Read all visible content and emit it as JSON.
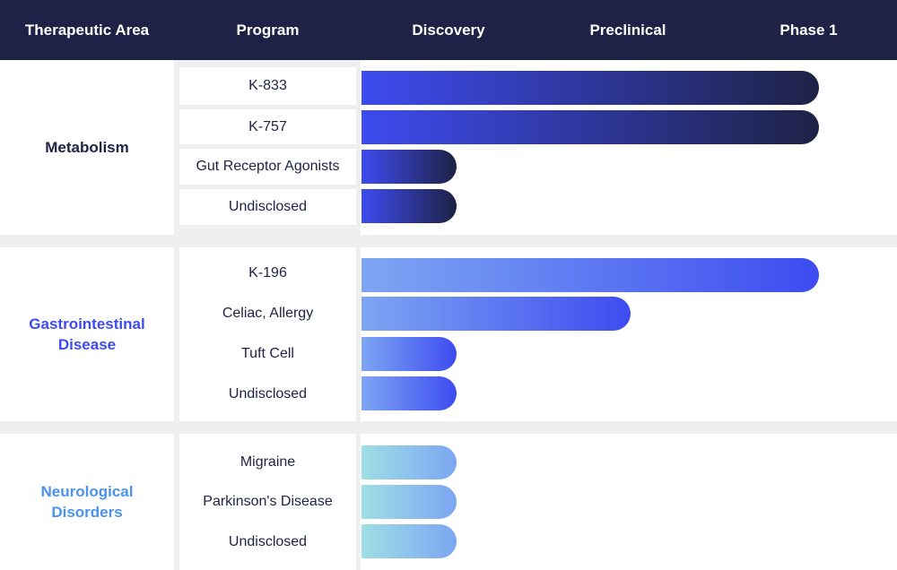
{
  "header": {
    "therapeutic_area": "Therapeutic Area",
    "program": "Program",
    "stages": [
      "Discovery",
      "Preclinical",
      "Phase 1"
    ]
  },
  "colors": {
    "header_bg": "#1e2246",
    "divider": "#efefef",
    "metabolism": "#1e2246",
    "gastrointestinal": "#3d4bf0",
    "neurological": "#4a92ef"
  },
  "chart_data": {
    "type": "bar",
    "orientation": "horizontal",
    "x_categories": [
      "Discovery",
      "Preclinical",
      "Phase 1"
    ],
    "value_meaning": "stage reached, in stage columns (1 = Discovery, 2 = Preclinical, 3 = Phase 1)",
    "xlim": [
      0,
      3
    ],
    "groups": [
      {
        "area": "Metabolism",
        "label": "Metabolism",
        "gradient": [
          "#3d4bf0",
          "#1e2246"
        ],
        "programs": [
          {
            "name": "K-833",
            "value": 2.55
          },
          {
            "name": "K-757",
            "value": 2.55
          },
          {
            "name": "Gut Receptor Agonists",
            "value": 0.53
          },
          {
            "name": "Undisclosed",
            "value": 0.53
          }
        ]
      },
      {
        "area": "Gastrointestinal Disease",
        "label": "Gastrointestinal\nDisease",
        "gradient": [
          "#7ea6f3",
          "#3d4bf0"
        ],
        "programs": [
          {
            "name": "K-196",
            "value": 2.55
          },
          {
            "name": "Celiac, Allergy",
            "value": 1.5
          },
          {
            "name": "Tuft Cell",
            "value": 0.53
          },
          {
            "name": "Undisclosed",
            "value": 0.53
          }
        ]
      },
      {
        "area": "Neurological Disorders",
        "label": "Neurological\nDisorders",
        "gradient": [
          "#9fdfe6",
          "#7ba6f2"
        ],
        "programs": [
          {
            "name": "Migraine",
            "value": 0.53
          },
          {
            "name": "Parkinson's Disease",
            "value": 0.53
          },
          {
            "name": "Undisclosed",
            "value": 0.53
          }
        ]
      }
    ]
  }
}
